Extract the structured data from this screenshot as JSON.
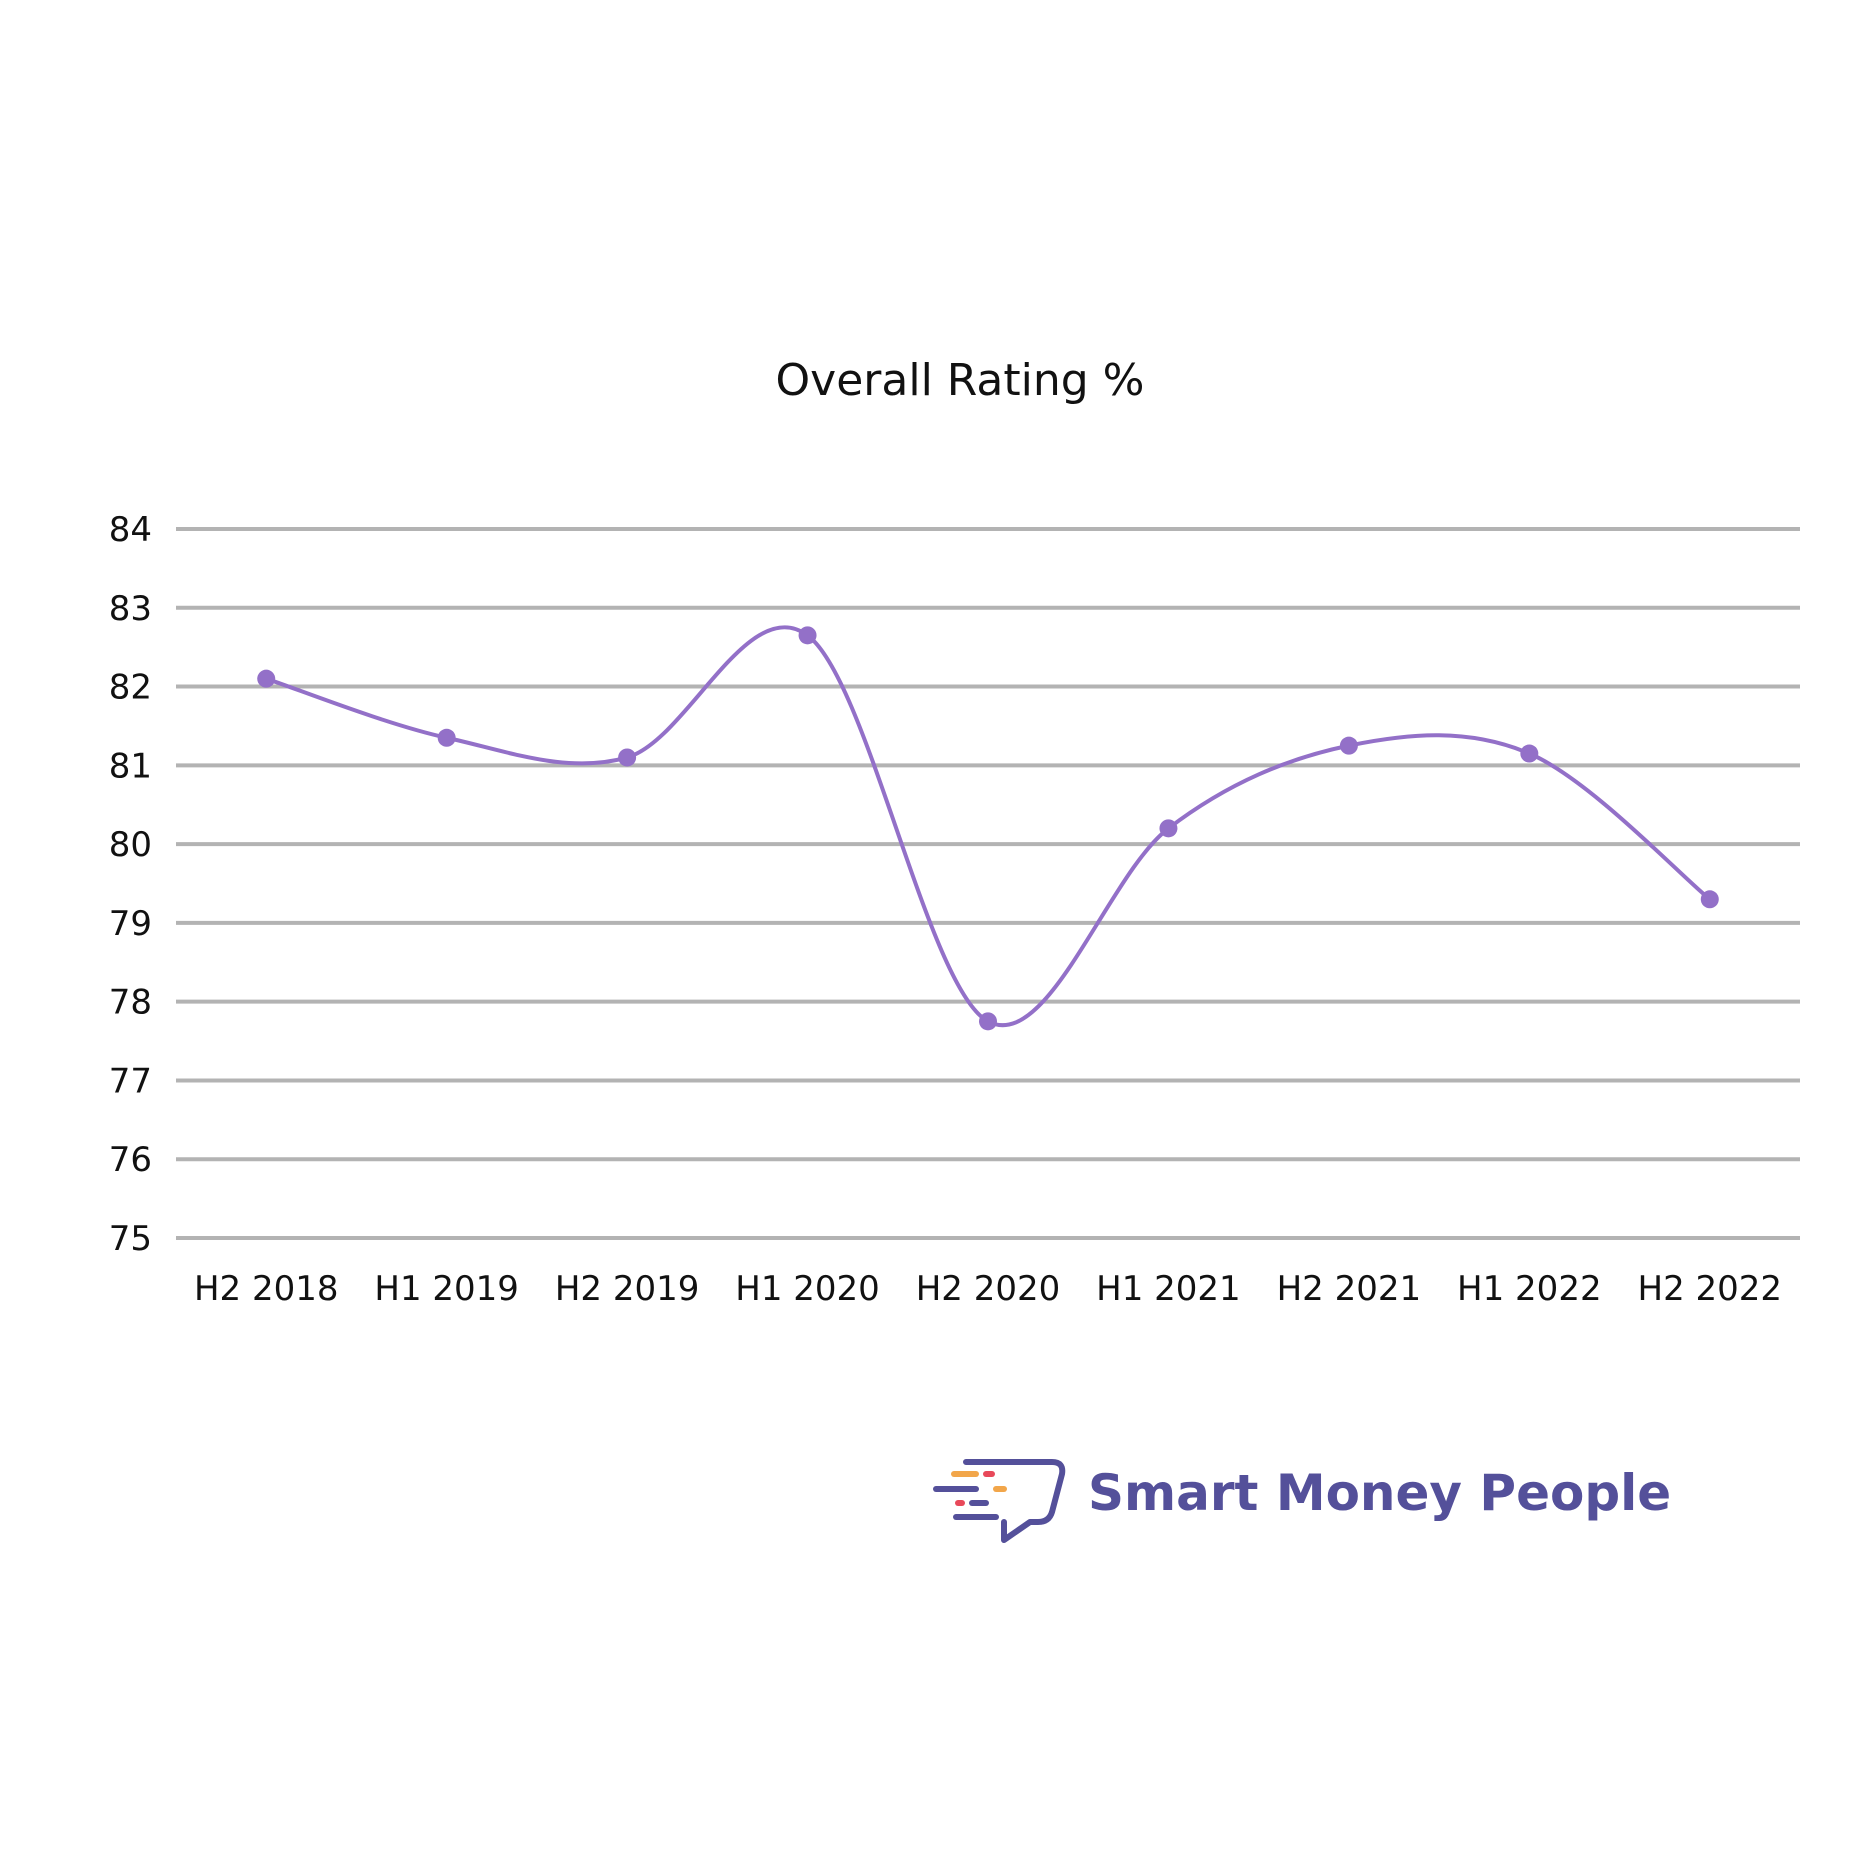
{
  "chart_data": {
    "type": "line",
    "title": "Overall Rating %",
    "xlabel": "",
    "ylabel": "",
    "categories": [
      "H2 2018",
      "H1 2019",
      "H2 2019",
      "H1 2020",
      "H2 2020",
      "H1 2021",
      "H2 2021",
      "H1 2022",
      "H2 2022"
    ],
    "series": [
      {
        "values": [
          82.1,
          81.35,
          81.1,
          82.65,
          77.75,
          80.2,
          81.25,
          81.15,
          79.3
        ]
      }
    ],
    "yticks": [
      "75",
      "76",
      "77",
      "78",
      "79",
      "80",
      "81",
      "82",
      "83",
      "84"
    ],
    "ylim": [
      75,
      84
    ],
    "grid": true,
    "smooth": true,
    "colors": {
      "line": "#9370c8",
      "grid": "#b3b3b3"
    }
  },
  "brand": {
    "name": "Smart Money People",
    "logo_icon": "chat-bubble-logo-icon",
    "color": "#54509a",
    "accents": [
      "#f2a64a",
      "#e8495a"
    ]
  }
}
